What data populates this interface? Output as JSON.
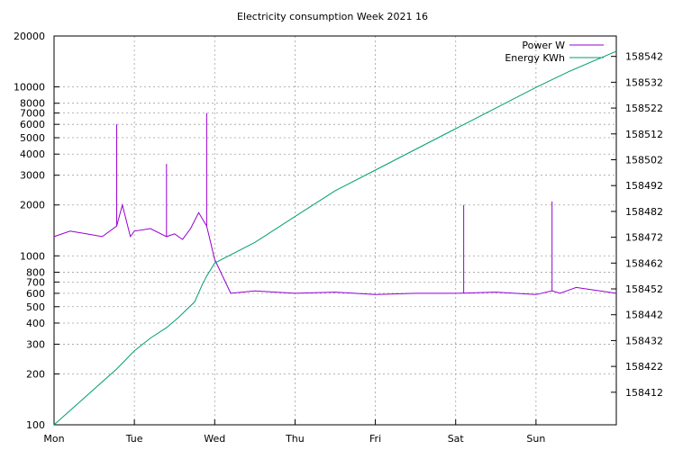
{
  "chart_data": {
    "type": "line",
    "title": "Electricity consumption Week 2021 16",
    "xlabel": "",
    "ylabel": "",
    "y2label": "",
    "x_ticks": [
      "Mon",
      "Tue",
      "Wed",
      "Thu",
      "Fri",
      "Sat",
      "Sun"
    ],
    "x_range_days": [
      0,
      7
    ],
    "y_left": {
      "scale": "log",
      "range": [
        100,
        20000
      ],
      "ticks": [
        100,
        200,
        300,
        400,
        500,
        600,
        700,
        800,
        1000,
        2000,
        3000,
        4000,
        5000,
        6000,
        7000,
        8000,
        10000,
        20000
      ]
    },
    "y_right": {
      "scale": "linear",
      "range": [
        158399.4,
        158549.9
      ],
      "ticks": [
        158412,
        158422,
        158432,
        158442,
        158452,
        158462,
        158472,
        158482,
        158492,
        158502,
        158512,
        158522,
        158532,
        158542
      ]
    },
    "grid": true,
    "legend_position": "top-right",
    "series": [
      {
        "name": "Power W",
        "axis": "left",
        "color": "#9400d3",
        "x": [
          0,
          0.2,
          0.4,
          0.6,
          0.78,
          0.85,
          0.95,
          1.0,
          1.2,
          1.4,
          1.5,
          1.6,
          1.7,
          1.8,
          1.9,
          2.0,
          2.2,
          2.5,
          3.0,
          3.5,
          4.0,
          4.5,
          5.0,
          5.5,
          6.0,
          6.2,
          6.3,
          6.5,
          7.0
        ],
        "y": [
          1300,
          1400,
          1350,
          1300,
          1500,
          2000,
          1300,
          1400,
          1450,
          1300,
          1350,
          1250,
          1450,
          1800,
          1500,
          950,
          600,
          620,
          600,
          610,
          590,
          600,
          600,
          610,
          590,
          620,
          600,
          650,
          600
        ],
        "spikes": [
          {
            "x": 0.78,
            "y": 6000
          },
          {
            "x": 1.4,
            "y": 3500
          },
          {
            "x": 1.9,
            "y": 7000
          },
          {
            "x": 5.1,
            "y": 2000
          },
          {
            "x": 6.2,
            "y": 2100
          }
        ]
      },
      {
        "name": "Energy KWh",
        "axis": "right",
        "color": "#009e73",
        "x": [
          0,
          0.78,
          1.0,
          1.2,
          1.4,
          1.55,
          1.75,
          1.85,
          1.9,
          2.0,
          2.5,
          3.0,
          3.5,
          4.0,
          4.5,
          5.0,
          5.5,
          6.0,
          6.4,
          7.0
        ],
        "y": [
          158399.4,
          158421,
          158428,
          158433,
          158437,
          158441,
          158447,
          158454,
          158457,
          158462,
          158470,
          158480,
          158490,
          158498,
          158506,
          158514,
          158522,
          158530,
          158536,
          158544
        ]
      }
    ]
  }
}
